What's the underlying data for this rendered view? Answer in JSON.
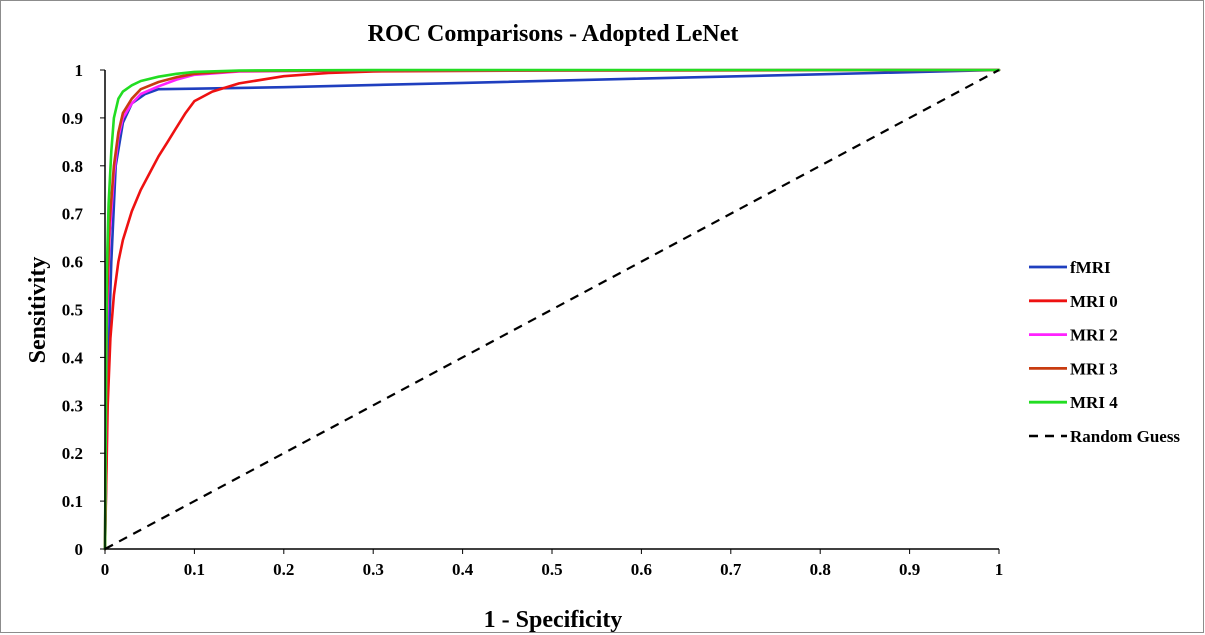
{
  "chart_data": {
    "type": "line",
    "title": "ROC Comparisons - Adopted LeNet",
    "xlabel": "1 - Specificity",
    "ylabel": "Sensitivity",
    "xlim": [
      0,
      1
    ],
    "ylim": [
      0,
      1
    ],
    "xticks": [
      "0",
      "0.1",
      "0.2",
      "0.3",
      "0.4",
      "0.5",
      "0.6",
      "0.7",
      "0.8",
      "0.9",
      "1"
    ],
    "yticks": [
      "0",
      "0.1",
      "0.2",
      "0.3",
      "0.4",
      "0.5",
      "0.6",
      "0.7",
      "0.8",
      "0.9",
      "1"
    ],
    "grid": false,
    "legend_position": "right",
    "series": [
      {
        "name": "fMRI",
        "color": "#1f3fbf",
        "dashed": false,
        "x": [
          0,
          0.003,
          0.007,
          0.012,
          0.02,
          0.03,
          0.045,
          0.06,
          0.1,
          0.2,
          0.4,
          0.6,
          0.8,
          1
        ],
        "y": [
          0,
          0.35,
          0.6,
          0.8,
          0.89,
          0.93,
          0.95,
          0.96,
          0.961,
          0.964,
          0.973,
          0.982,
          0.991,
          1
        ]
      },
      {
        "name": "MRI 0",
        "color": "#ee1111",
        "dashed": false,
        "x": [
          0,
          0.003,
          0.006,
          0.01,
          0.015,
          0.02,
          0.03,
          0.04,
          0.05,
          0.06,
          0.07,
          0.08,
          0.09,
          0.1,
          0.12,
          0.15,
          0.2,
          0.25,
          0.3,
          0.5,
          1
        ],
        "y": [
          0,
          0.3,
          0.44,
          0.53,
          0.6,
          0.645,
          0.705,
          0.75,
          0.785,
          0.82,
          0.85,
          0.88,
          0.91,
          0.935,
          0.955,
          0.972,
          0.987,
          0.994,
          0.997,
          0.999,
          1
        ]
      },
      {
        "name": "MRI 2",
        "color": "#ff22ff",
        "dashed": false,
        "x": [
          0,
          0.002,
          0.005,
          0.01,
          0.015,
          0.02,
          0.03,
          0.04,
          0.06,
          0.08,
          0.1,
          0.15,
          0.3,
          1
        ],
        "y": [
          0,
          0.45,
          0.65,
          0.78,
          0.86,
          0.9,
          0.93,
          0.95,
          0.966,
          0.98,
          0.99,
          0.997,
          0.999,
          1
        ]
      },
      {
        "name": "MRI 3",
        "color": "#c83c10",
        "dashed": false,
        "x": [
          0,
          0.002,
          0.005,
          0.01,
          0.015,
          0.02,
          0.03,
          0.04,
          0.06,
          0.08,
          0.1,
          0.15,
          0.3,
          1
        ],
        "y": [
          0,
          0.5,
          0.68,
          0.8,
          0.87,
          0.91,
          0.94,
          0.96,
          0.975,
          0.985,
          0.992,
          0.998,
          0.999,
          1
        ]
      },
      {
        "name": "MRI 4",
        "color": "#22dd22",
        "dashed": false,
        "x": [
          0,
          0.002,
          0.004,
          0.007,
          0.01,
          0.015,
          0.02,
          0.03,
          0.04,
          0.06,
          0.08,
          0.1,
          0.15,
          0.3,
          1
        ],
        "y": [
          0,
          0.58,
          0.72,
          0.83,
          0.9,
          0.94,
          0.955,
          0.968,
          0.977,
          0.986,
          0.992,
          0.996,
          0.999,
          1,
          1
        ]
      },
      {
        "name": "Random Guess",
        "color": "#000000",
        "dashed": true,
        "x": [
          0,
          1
        ],
        "y": [
          0,
          1
        ]
      }
    ]
  }
}
